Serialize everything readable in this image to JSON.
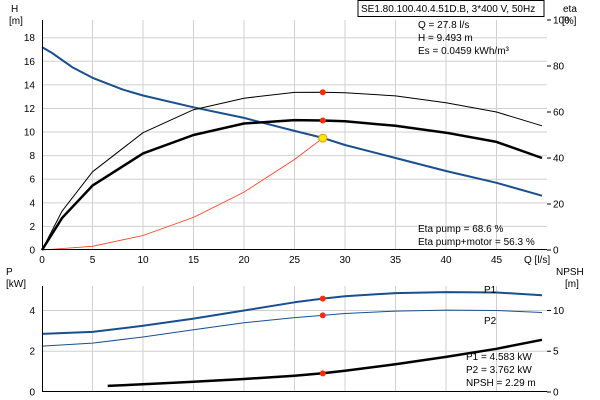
{
  "colors": {
    "h_curve": "#1a4f8f",
    "p1_curve": "#1a4f8f",
    "p2_curve": "#1a4f8f",
    "eta_pump": "#000000",
    "eta_total": "#000000",
    "npsh": "#000000",
    "system_curve": "#ff3b1f",
    "marker": "#ff2a00",
    "op_marker_fill": "#ffe600",
    "grid": "#d0d0d0"
  },
  "chart_data": [
    {
      "type": "line",
      "title": "SE1.80.100.40.4.51D.B, 3*400 V, 50Hz",
      "x_axis": {
        "label": "Q [l/s]",
        "range": [
          0,
          50
        ],
        "ticks": [
          0,
          5,
          10,
          15,
          20,
          25,
          30,
          35,
          40,
          45
        ]
      },
      "y_axis_left": {
        "label_top": "H",
        "label_unit": "[m]",
        "range": [
          0,
          19.5
        ],
        "ticks": [
          0,
          2,
          4,
          6,
          8,
          10,
          12,
          14,
          16,
          18
        ]
      },
      "y_axis_right": {
        "label_top": "eta",
        "label_unit": "[%]",
        "range": [
          0,
          100
        ],
        "ticks": [
          0,
          20,
          40,
          60,
          80,
          100
        ]
      },
      "grid": true,
      "series": [
        {
          "axis": "left",
          "color_key": "h_curve",
          "x": [
            0,
            1,
            3,
            5,
            8,
            10,
            15,
            20,
            25,
            27.8,
            30,
            35,
            40,
            45,
            49.5
          ],
          "y": [
            17.2,
            16.7,
            15.5,
            14.6,
            13.6,
            13.1,
            12.1,
            11.2,
            10.1,
            9.5,
            8.9,
            7.8,
            6.7,
            5.7,
            4.6
          ]
        },
        {
          "axis": "left",
          "color_key": "system_curve",
          "x": [
            0,
            5,
            10,
            15,
            20,
            25,
            27.8
          ],
          "y": [
            0,
            0.31,
            1.23,
            2.76,
            4.91,
            7.67,
            9.49
          ]
        },
        {
          "axis": "right",
          "color_key": "eta_total",
          "x": [
            0,
            2,
            5,
            10,
            15,
            20,
            25,
            27.8,
            30,
            35,
            40,
            45,
            49.5
          ],
          "y": [
            0,
            14,
            28,
            42,
            50,
            55,
            56.5,
            56.3,
            56,
            54,
            51,
            47,
            40
          ]
        },
        {
          "axis": "right",
          "color_key": "eta_pump",
          "x": [
            0,
            2,
            5,
            10,
            15,
            20,
            25,
            27.8,
            30,
            35,
            40,
            45,
            49.5
          ],
          "y": [
            0,
            17,
            34,
            51,
            61,
            66,
            68.5,
            68.6,
            68.4,
            67,
            64,
            60,
            54
          ]
        }
      ],
      "points": [
        {
          "axis": "left",
          "x": 27.8,
          "y": 9.49,
          "kind": "operating"
        },
        {
          "axis": "right",
          "x": 27.8,
          "y": 68.6,
          "kind": "marker"
        },
        {
          "axis": "right",
          "x": 27.8,
          "y": 56.3,
          "kind": "marker"
        }
      ],
      "annotations": {
        "q": "Q = 27.8 l/s",
        "h": "H = 9.493 m",
        "es": "Es = 0.0459 kWh/m³",
        "eta_pump": "Eta pump = 68.6 %",
        "eta_total": "Eta pump+motor = 56.3 %"
      }
    },
    {
      "type": "line",
      "x_axis": {
        "range": [
          0,
          50
        ]
      },
      "y_axis_left": {
        "label_top": "P",
        "label_unit": "[kW]",
        "range": [
          0,
          5.2
        ],
        "ticks": [
          0,
          2,
          4
        ]
      },
      "y_axis_right": {
        "label_top": "NPSH",
        "label_unit": "[m]",
        "range": [
          0,
          13
        ],
        "ticks": [
          0,
          5,
          10
        ]
      },
      "grid": true,
      "series": [
        {
          "name": "P1",
          "axis": "left",
          "color_key": "p1_curve",
          "x": [
            0,
            5,
            10,
            15,
            20,
            25,
            27.8,
            30,
            35,
            40,
            45,
            49.5
          ],
          "y": [
            2.85,
            2.95,
            3.25,
            3.6,
            4.0,
            4.4,
            4.58,
            4.7,
            4.85,
            4.9,
            4.88,
            4.75
          ]
        },
        {
          "name": "P2",
          "axis": "left",
          "color_key": "p2_curve",
          "x": [
            0,
            5,
            10,
            15,
            20,
            25,
            27.8,
            30,
            35,
            40,
            45,
            49.5
          ],
          "y": [
            2.25,
            2.4,
            2.7,
            3.05,
            3.4,
            3.65,
            3.76,
            3.85,
            3.97,
            4.02,
            4.0,
            3.9
          ]
        },
        {
          "axis": "right",
          "color_key": "npsh",
          "x": [
            6.5,
            10,
            15,
            20,
            25,
            27.8,
            30,
            35,
            40,
            45,
            49.5
          ],
          "y": [
            0.75,
            0.95,
            1.25,
            1.6,
            2.0,
            2.29,
            2.6,
            3.4,
            4.3,
            5.3,
            6.4
          ]
        }
      ],
      "points": [
        {
          "axis": "left",
          "x": 27.8,
          "y": 4.58,
          "kind": "marker"
        },
        {
          "axis": "left",
          "x": 27.8,
          "y": 3.76,
          "kind": "marker"
        },
        {
          "axis": "right",
          "x": 27.8,
          "y": 2.29,
          "kind": "marker"
        }
      ],
      "annotations": {
        "p1": "P1 = 4.583 kW",
        "p2": "P2 = 3.762 kW",
        "npsh": "NPSH = 2.29 m"
      }
    }
  ]
}
